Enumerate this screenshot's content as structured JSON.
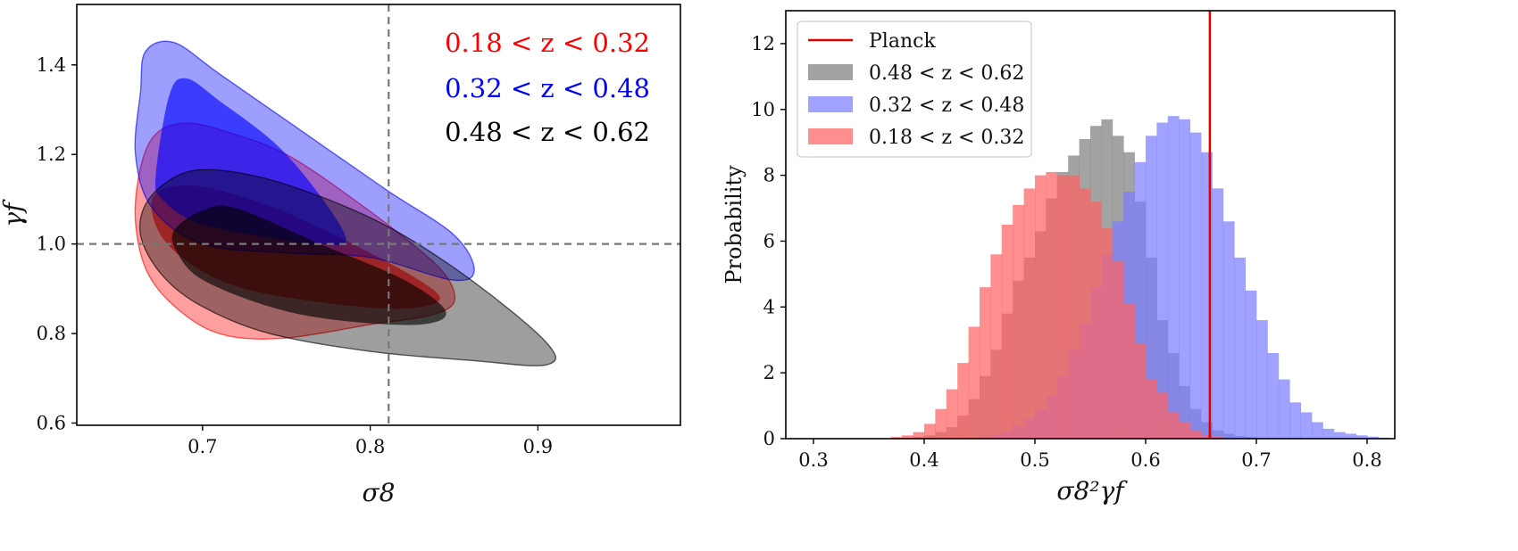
{
  "chart_data": [
    {
      "type": "contour",
      "xlabel": "σ8",
      "ylabel": "γf",
      "xlim": [
        0.625,
        0.985
      ],
      "ylim": [
        0.595,
        1.535
      ],
      "xticks": [
        "0.7",
        "0.8",
        "0.9"
      ],
      "yticks": [
        "0.6",
        "0.8",
        "1.0",
        "1.2",
        "1.4"
      ],
      "reference_lines": {
        "x": 0.811,
        "y": 1.0
      },
      "series": [
        {
          "name": "0.18 < z < 0.32",
          "color": "#ff0000",
          "outer": [
            [
              0.663,
              1.17
            ],
            [
              0.672,
              1.245
            ],
            [
              0.69,
              1.27
            ],
            [
              0.715,
              1.25
            ],
            [
              0.75,
              1.2
            ],
            [
              0.79,
              1.1
            ],
            [
              0.825,
              1.0
            ],
            [
              0.845,
              0.93
            ],
            [
              0.85,
              0.87
            ],
            [
              0.835,
              0.84
            ],
            [
              0.8,
              0.82
            ],
            [
              0.75,
              0.79
            ],
            [
              0.715,
              0.795
            ],
            [
              0.69,
              0.84
            ],
            [
              0.668,
              0.93
            ],
            [
              0.66,
              1.05
            ]
          ],
          "inner": [
            [
              0.67,
              1.1
            ],
            [
              0.685,
              1.13
            ],
            [
              0.71,
              1.12
            ],
            [
              0.75,
              1.07
            ],
            [
              0.8,
              0.98
            ],
            [
              0.835,
              0.905
            ],
            [
              0.84,
              0.87
            ],
            [
              0.815,
              0.855
            ],
            [
              0.77,
              0.87
            ],
            [
              0.725,
              0.9
            ],
            [
              0.695,
              0.95
            ],
            [
              0.675,
              1.02
            ]
          ]
        },
        {
          "name": "0.32 < z < 0.48",
          "color": "#0000ff",
          "outer": [
            [
              0.663,
              1.34
            ],
            [
              0.666,
              1.43
            ],
            [
              0.683,
              1.45
            ],
            [
              0.71,
              1.38
            ],
            [
              0.76,
              1.25
            ],
            [
              0.81,
              1.12
            ],
            [
              0.85,
              1.02
            ],
            [
              0.862,
              0.94
            ],
            [
              0.848,
              0.92
            ],
            [
              0.8,
              0.97
            ],
            [
              0.75,
              0.98
            ],
            [
              0.7,
              1.0
            ],
            [
              0.67,
              1.08
            ],
            [
              0.66,
              1.2
            ]
          ],
          "inner": [
            [
              0.672,
              1.15
            ],
            [
              0.68,
              1.33
            ],
            [
              0.69,
              1.37
            ],
            [
              0.71,
              1.32
            ],
            [
              0.75,
              1.2
            ],
            [
              0.785,
              1.02
            ],
            [
              0.77,
              1.0
            ],
            [
              0.73,
              1.02
            ],
            [
              0.695,
              1.05
            ],
            [
              0.676,
              1.1
            ]
          ]
        },
        {
          "name": "0.48 < z < 0.62",
          "color": "#000000",
          "outer": [
            [
              0.668,
              1.1
            ],
            [
              0.69,
              1.16
            ],
            [
              0.72,
              1.16
            ],
            [
              0.76,
              1.12
            ],
            [
              0.81,
              1.04
            ],
            [
              0.86,
              0.92
            ],
            [
              0.905,
              0.78
            ],
            [
              0.905,
              0.73
            ],
            [
              0.86,
              0.74
            ],
            [
              0.8,
              0.76
            ],
            [
              0.74,
              0.8
            ],
            [
              0.7,
              0.86
            ],
            [
              0.676,
              0.93
            ],
            [
              0.663,
              1.02
            ]
          ],
          "inner": [
            [
              0.683,
              1.03
            ],
            [
              0.7,
              1.075
            ],
            [
              0.72,
              1.08
            ],
            [
              0.77,
              1.0
            ],
            [
              0.82,
              0.92
            ],
            [
              0.845,
              0.85
            ],
            [
              0.83,
              0.82
            ],
            [
              0.78,
              0.83
            ],
            [
              0.74,
              0.86
            ],
            [
              0.7,
              0.92
            ],
            [
              0.685,
              0.98
            ]
          ]
        }
      ]
    },
    {
      "type": "histogram",
      "xlabel": "σ8²γf",
      "ylabel": "Probability",
      "xlim": [
        0.275,
        0.825
      ],
      "ylim": [
        0,
        13
      ],
      "bin_width": 0.01,
      "xticks": [
        "0.3",
        "0.4",
        "0.5",
        "0.6",
        "0.7",
        "0.8"
      ],
      "yticks": [
        "0",
        "2",
        "4",
        "6",
        "8",
        "10",
        "12"
      ],
      "reference_lines": {
        "x": 0.658,
        "label": "Planck"
      },
      "series": [
        {
          "name": "0.48 < z < 0.62",
          "color": "#808080",
          "bin_start": 0.37,
          "values": [
            0.02,
            0.03,
            0.05,
            0.1,
            0.2,
            0.35,
            0.7,
            1.2,
            1.9,
            2.7,
            3.8,
            4.8,
            5.5,
            6.3,
            7.3,
            8.1,
            8.6,
            9.1,
            9.5,
            9.7,
            9.2,
            8.7,
            7.2,
            5.5,
            3.6,
            2.6,
            1.6,
            0.9,
            0.5,
            0.25,
            0.15,
            0.08,
            0.05,
            0.03,
            0.02
          ]
        },
        {
          "name": "0.32 < z < 0.48",
          "color": "#7d7dff",
          "bin_start": 0.44,
          "values": [
            0.03,
            0.06,
            0.12,
            0.22,
            0.4,
            0.6,
            0.9,
            1.3,
            1.9,
            2.7,
            3.5,
            4.6,
            5.6,
            6.6,
            7.5,
            8.4,
            9.2,
            9.6,
            9.8,
            9.7,
            9.3,
            8.7,
            7.6,
            6.6,
            5.5,
            4.5,
            3.6,
            2.6,
            1.8,
            1.1,
            0.8,
            0.5,
            0.3,
            0.2,
            0.15,
            0.1,
            0.06,
            0.03
          ]
        },
        {
          "name": "0.18 < z < 0.32",
          "color": "#ff6464",
          "bin_start": 0.37,
          "values": [
            0.05,
            0.1,
            0.2,
            0.45,
            0.9,
            1.5,
            2.3,
            3.4,
            4.6,
            5.6,
            6.5,
            7.1,
            7.6,
            8.0,
            8.1,
            8.0,
            8.0,
            7.6,
            7.2,
            6.4,
            5.4,
            4.1,
            2.9,
            1.8,
            1.4,
            0.8,
            0.5,
            0.25,
            0.1,
            0.05,
            0.02
          ]
        }
      ]
    }
  ],
  "left": {
    "labels": [
      {
        "text": "0.18 < z < 0.32",
        "color": "#ff0000"
      },
      {
        "text": "0.32 < z < 0.48",
        "color": "#0000ff"
      },
      {
        "text": "0.48 < z < 0.62",
        "color": "#000000"
      }
    ]
  },
  "right": {
    "legend": [
      {
        "text": "Planck",
        "color": "#e00000",
        "kind": "line"
      },
      {
        "text": "0.48 < z < 0.62",
        "color": "#808080",
        "kind": "patch"
      },
      {
        "text": "0.32 < z < 0.48",
        "color": "#7d7dff",
        "kind": "patch"
      },
      {
        "text": "0.18 < z < 0.32",
        "color": "#ff6464",
        "kind": "patch"
      }
    ]
  }
}
